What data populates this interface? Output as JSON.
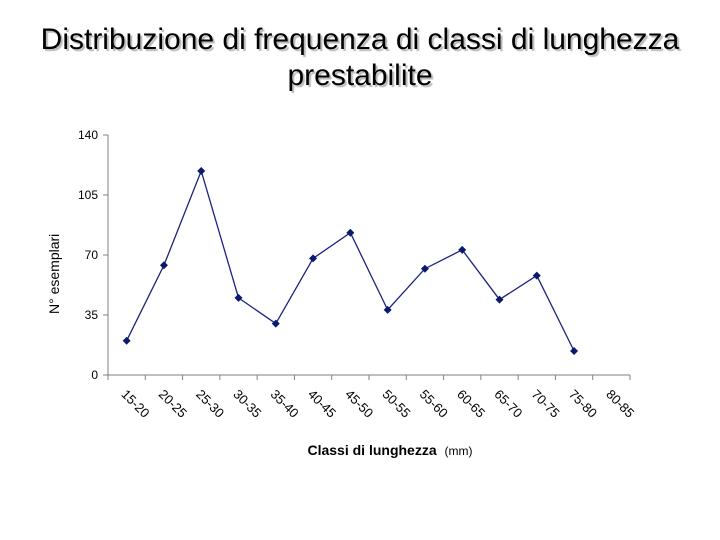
{
  "chart_data": {
    "type": "line",
    "title": "Distribuzione di frequenza di classi di lunghezza prestabilite",
    "xlabel": "Classi di lunghezza",
    "xlabel_unit": "(mm)",
    "ylabel": "N° esemplari",
    "categories": [
      "15-20",
      "20-25",
      "25-30",
      "30-35",
      "35-40",
      "40-45",
      "45-50",
      "50-55",
      "55-60",
      "60-65",
      "65-70",
      "70-75",
      "75-80",
      "80-85"
    ],
    "series": [
      {
        "values": [
          20,
          64,
          119,
          45,
          30,
          68,
          83,
          38,
          62,
          73,
          44,
          58,
          14,
          null
        ]
      }
    ],
    "yticks": [
      "0",
      "35",
      "70",
      "105",
      "140"
    ],
    "ylim": [
      0,
      140
    ],
    "grid": false,
    "legend": "none",
    "colors": {
      "line": "#1a237e",
      "marker": "#0a1a6e",
      "axis": "#808080"
    }
  }
}
